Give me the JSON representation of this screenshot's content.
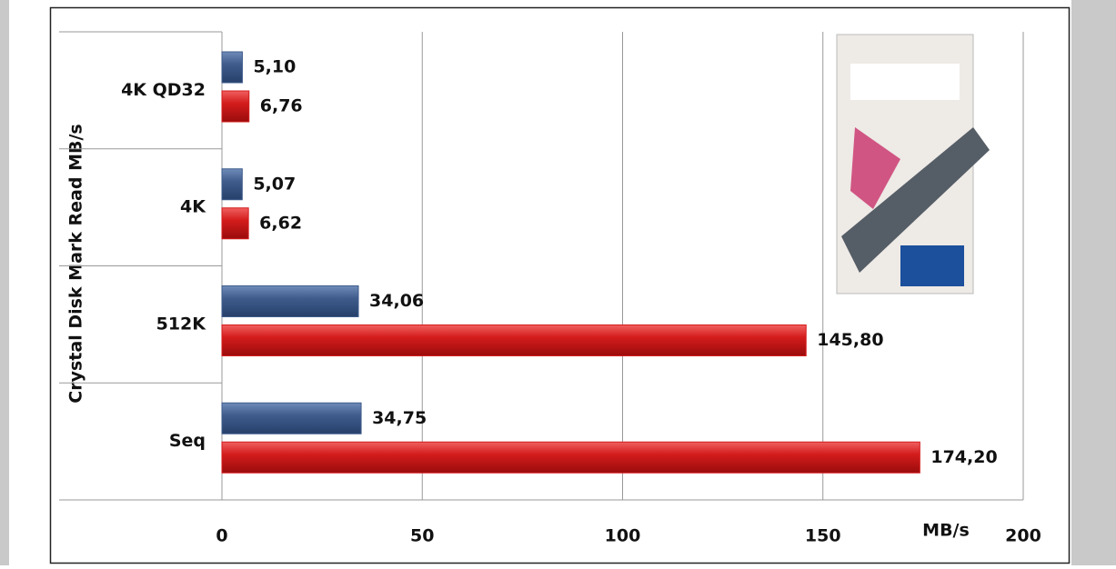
{
  "chart_data": {
    "type": "hbar",
    "y_axis_label": "Crystal Disk Mark Read MB/s",
    "x_axis_label": "MB/s",
    "categories": [
      "4K QD32",
      "4K",
      "512K",
      "Seq"
    ],
    "series": [
      {
        "color": "#3f5c8c",
        "values": [
          5.1,
          5.07,
          34.06,
          34.75
        ],
        "value_labels": [
          "5,10",
          "5,07",
          "34,06",
          "34,75"
        ]
      },
      {
        "color": "#d41c1c",
        "values": [
          6.76,
          6.62,
          145.8,
          174.2
        ],
        "value_labels": [
          "6,76",
          "6,62",
          "145,80",
          "174,20"
        ]
      }
    ],
    "xlim": [
      0,
      200
    ],
    "xticks": [
      0,
      50,
      100,
      150,
      200
    ],
    "grid": true
  }
}
